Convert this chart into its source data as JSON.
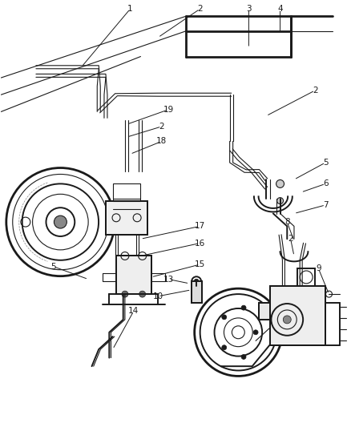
{
  "bg_color": "#ffffff",
  "line_color": "#1a1a1a",
  "fig_width": 4.38,
  "fig_height": 5.33,
  "dpi": 100,
  "callout_fontsize": 7.5
}
